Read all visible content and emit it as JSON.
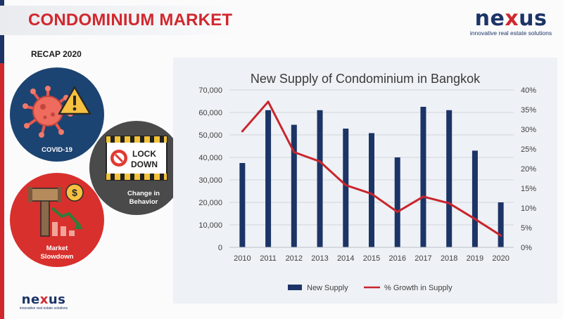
{
  "slide": {
    "title": "CONDOMINIUM MARKET",
    "subtitle": "RECAP 2020",
    "brand": {
      "word_pre": "ne",
      "word_x": "x",
      "word_post": "us",
      "tagline": "innovative real estate solutions",
      "primary_color": "#1c3466",
      "accent_color": "#d1282e"
    },
    "factors": [
      {
        "label_1": "COVID-19",
        "label_2": "",
        "icon": "virus-warning-icon",
        "color": "#1c4472"
      },
      {
        "label_1": "Change in",
        "label_2": "Behavior",
        "icon": "lockdown-sign-icon",
        "color": "#4a4a4b",
        "sign_1": "LOCK",
        "sign_2": "DOWN"
      },
      {
        "label_1": "Market",
        "label_2": "Slowdown",
        "icon": "gavel-decline-icon",
        "color": "#d8302d",
        "coin": "$"
      }
    ]
  },
  "chart_data": {
    "type": "bar",
    "title": "New Supply of Condominium  in Bangkok",
    "categories": [
      "2010",
      "2011",
      "2012",
      "2013",
      "2014",
      "2015",
      "2016",
      "2017",
      "2018",
      "2019",
      "2020"
    ],
    "series": [
      {
        "name": "New Supply",
        "type": "bar",
        "axis": "left",
        "color": "#1c3466",
        "values": [
          37500,
          61000,
          54500,
          61000,
          52800,
          50800,
          40000,
          62500,
          61000,
          43000,
          20000
        ]
      },
      {
        "name": "% Growth in Supply",
        "type": "line",
        "axis": "right",
        "color": "#c9252c",
        "values": [
          29.5,
          37,
          24.2,
          21.8,
          15.8,
          13.6,
          9,
          12.9,
          11.2,
          7.2,
          3
        ]
      }
    ],
    "y_left": {
      "min": 0,
      "max": 70000,
      "ticks": [
        "0",
        "10,000",
        "20,000",
        "30,000",
        "40,000",
        "50,000",
        "60,000",
        "70,000"
      ]
    },
    "y_right": {
      "min": 0,
      "max": 40,
      "ticks": [
        "0%",
        "5%",
        "10%",
        "15%",
        "20%",
        "25%",
        "30%",
        "35%",
        "40%"
      ]
    },
    "grid": true,
    "legend": "bottom-center"
  }
}
